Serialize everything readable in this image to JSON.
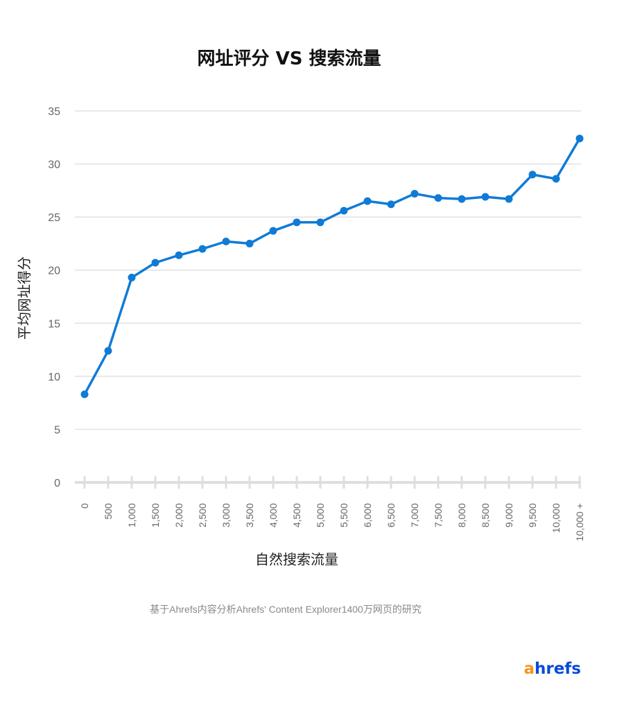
{
  "chart_data": {
    "type": "line",
    "title": "网址评分 VS 搜索流量",
    "xlabel": "自然搜索流量",
    "ylabel": "平均网址得分",
    "ylim": [
      0,
      35
    ],
    "yticks": [
      0,
      5,
      10,
      15,
      20,
      25,
      30,
      35
    ],
    "grid": true,
    "categories": [
      "0",
      "500",
      "1,000",
      "1,500",
      "2,000",
      "2,500",
      "3,000",
      "3,500",
      "4,000",
      "4,500",
      "5,000",
      "5,500",
      "6,000",
      "6,500",
      "7,000",
      "7,500",
      "8,000",
      "8,500",
      "9,000",
      "9,500",
      "10,000",
      "10,000 +"
    ],
    "series": [
      {
        "name": "平均网址得分",
        "color": "#0f7bd6",
        "values": [
          8.3,
          12.4,
          19.3,
          20.7,
          21.4,
          22.0,
          22.7,
          22.5,
          23.7,
          24.5,
          24.5,
          25.6,
          26.5,
          26.2,
          27.2,
          26.8,
          26.7,
          26.9,
          26.7,
          29.0,
          28.6,
          32.4
        ]
      }
    ],
    "footnote": "基于Ahrefs内容分析Ahrefs' Content Explorer1400万网页的研究"
  },
  "brand": {
    "logo_prefix": "a",
    "logo_rest": "hrefs",
    "prefix_color": "#f7941d",
    "rest_color": "#054ada"
  },
  "colors": {
    "line": "#0f7bd6",
    "grid": "#e1e1e1"
  }
}
